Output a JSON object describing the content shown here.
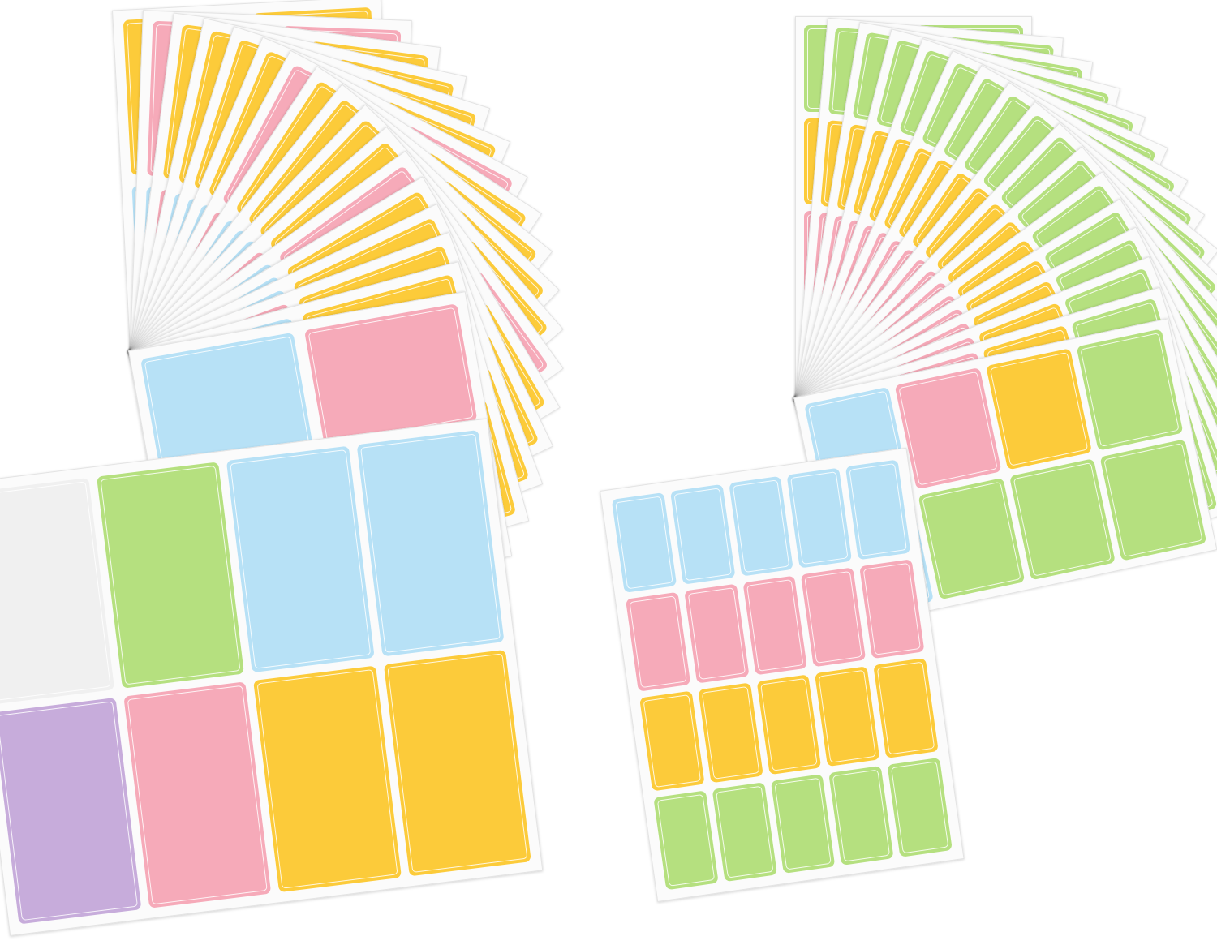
{
  "colors": {
    "yellow": "#fccb3a",
    "blue": "#b7e1f6",
    "pink": "#f6aab9",
    "green": "#b5e07f",
    "purple": "#c7acdb",
    "white": "#f0f0f0",
    "sheet": "#fbfbfb"
  },
  "fans": [
    {
      "name": "left-fan-large-labels",
      "sheet_count": 17,
      "front_sheet": {
        "label_grid": "2x4",
        "label_colors": [
          "white",
          "green",
          "blue",
          "blue",
          "purple",
          "pink",
          "yellow",
          "yellow"
        ]
      }
    },
    {
      "name": "right-fan-small-labels",
      "sheet_count": 17,
      "front_sheet": {
        "label_grid": "4x5",
        "row_colors": [
          "blue",
          "pink",
          "yellow",
          "green"
        ]
      }
    }
  ]
}
